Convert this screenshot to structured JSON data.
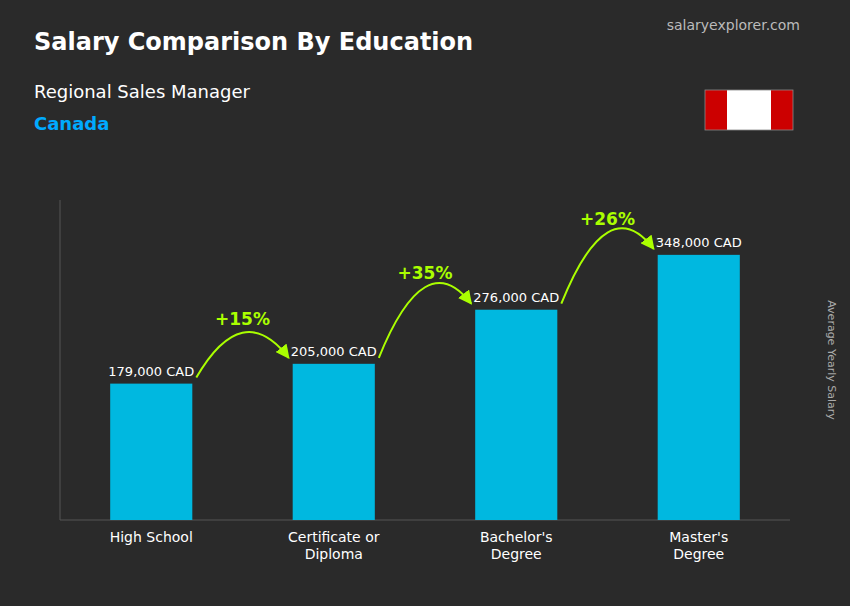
{
  "chart_data": {
    "type": "bar",
    "title": "Salary Comparison By Education",
    "subtitle": "Regional Sales Manager",
    "y_label": "Average Yearly Salary",
    "annotations": [
      "Canada",
      "salaryexplorer.com",
      "+15%",
      "+35%",
      "+26%"
    ],
    "categories": [
      "High School",
      "Certificate or\nDiploma",
      "Bachelor's\nDegree",
      "Master's\nDegree"
    ],
    "values": [
      179000,
      205000,
      276000,
      348000
    ],
    "value_labels": [
      "179,000 CAD",
      "205,000 CAD",
      "276,000 CAD",
      "348,000 CAD"
    ],
    "data_labels": true,
    "color": "#00b8e0",
    "ylim": [
      0,
      420000
    ],
    "grid": false,
    "tick_labels": "x"
  }
}
